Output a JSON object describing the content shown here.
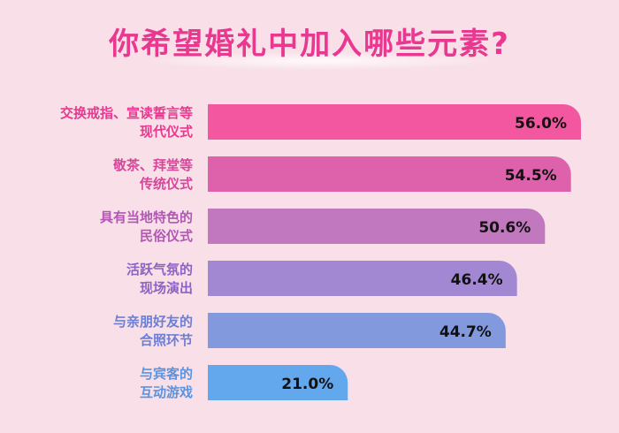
{
  "chart_data": {
    "type": "bar",
    "orientation": "horizontal",
    "title": "你希望婚礼中加入哪些元素?",
    "categories": [
      [
        "交换戒指、宣读誓言等",
        "现代仪式"
      ],
      [
        "敬茶、拜堂等",
        "传统仪式"
      ],
      [
        "具有当地特色的",
        "民俗仪式"
      ],
      [
        "活跃气氛的",
        "现场演出"
      ],
      [
        "与亲朋好友的",
        "合照环节"
      ],
      [
        "与宾客的",
        "互动游戏"
      ]
    ],
    "values": [
      56.0,
      54.5,
      50.6,
      46.4,
      44.7,
      21.0
    ],
    "value_labels": [
      "56.0%",
      "54.5%",
      "50.6%",
      "46.4%",
      "44.7%",
      "21.0%"
    ],
    "unit": "%",
    "bar_colors": [
      "#f2579f",
      "#dd62ab",
      "#c278bf",
      "#a288d3",
      "#8399de",
      "#63a8ec"
    ],
    "label_colors": [
      "#e9388f",
      "#d6479a",
      "#b058b2",
      "#8e62c4",
      "#6d7fd4",
      "#5a93e0"
    ],
    "grid": false,
    "legend": "none"
  }
}
